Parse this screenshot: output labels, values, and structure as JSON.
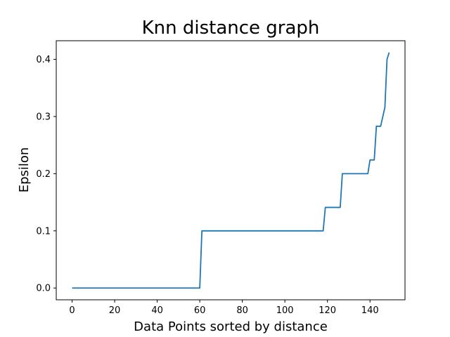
{
  "chart_data": {
    "type": "line",
    "title": "Knn distance graph",
    "xlabel": "Data Points sorted by distance",
    "ylabel": "Epsilon",
    "xlim": [
      -7.45,
      156.45
    ],
    "ylim": [
      -0.0206,
      0.4326
    ],
    "xticks": [
      0,
      20,
      40,
      60,
      80,
      100,
      120,
      140
    ],
    "yticks": [
      0.0,
      0.1,
      0.2,
      0.3,
      0.4
    ],
    "xtick_labels": [
      "0",
      "20",
      "40",
      "60",
      "80",
      "100",
      "120",
      "140"
    ],
    "ytick_labels": [
      "0.0",
      "0.1",
      "0.2",
      "0.3",
      "0.4"
    ],
    "grid": false,
    "series": [
      {
        "color": "#1f77b4",
        "x": [
          0,
          60,
          61,
          118,
          119,
          126,
          127,
          139,
          140,
          142,
          143,
          145,
          147,
          148,
          149
        ],
        "y": [
          0.0,
          0.0,
          0.1,
          0.1,
          0.141,
          0.141,
          0.2,
          0.2,
          0.224,
          0.224,
          0.283,
          0.283,
          0.316,
          0.4,
          0.412
        ]
      }
    ]
  }
}
